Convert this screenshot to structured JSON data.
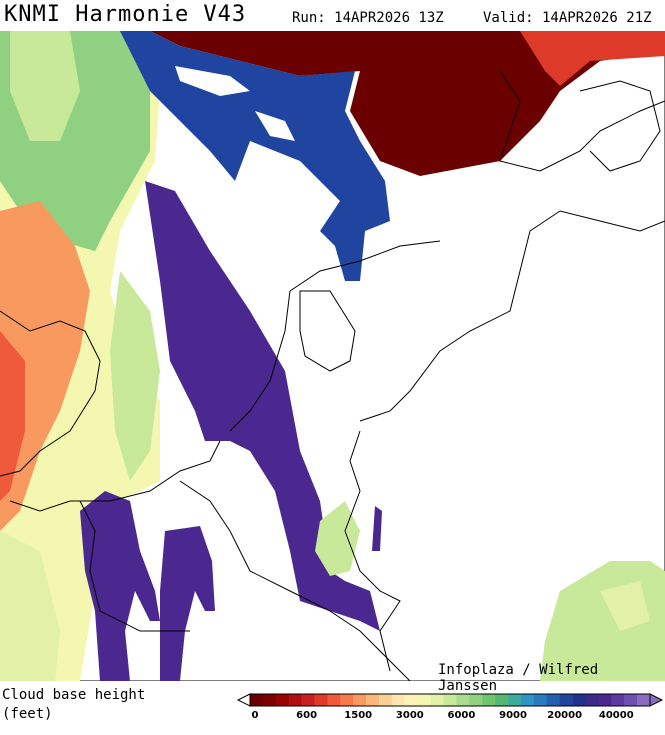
{
  "header": {
    "title": "KNMI Harmonie V43",
    "run": "Run: 14APR2026 13Z",
    "valid": "Valid: 14APR2026 21Z"
  },
  "credit": "Infoplaza / Wilfred Janssen",
  "legend": {
    "title": "Cloud base height",
    "unit": "(feet)",
    "ticks": [
      0,
      600,
      1500,
      3000,
      6000,
      9000,
      20000,
      40000
    ],
    "colors": [
      "#6b0000",
      "#7d0000",
      "#990000",
      "#b01010",
      "#c82020",
      "#dd3a2a",
      "#ee5a3a",
      "#f47a4a",
      "#f89a60",
      "#fbb77a",
      "#fcd095",
      "#fde6b0",
      "#fbf3b8",
      "#f3f7b0",
      "#e2f1a6",
      "#c8e89a",
      "#acdd8e",
      "#8fd180",
      "#70c470",
      "#55b870",
      "#3eaa9e",
      "#2f94c6",
      "#2a7ac0",
      "#2560b0",
      "#2045a0",
      "#223090",
      "#3a2a8a",
      "#4a2890",
      "#5c3aa0",
      "#7050b0",
      "#8a6cc0"
    ]
  }
}
